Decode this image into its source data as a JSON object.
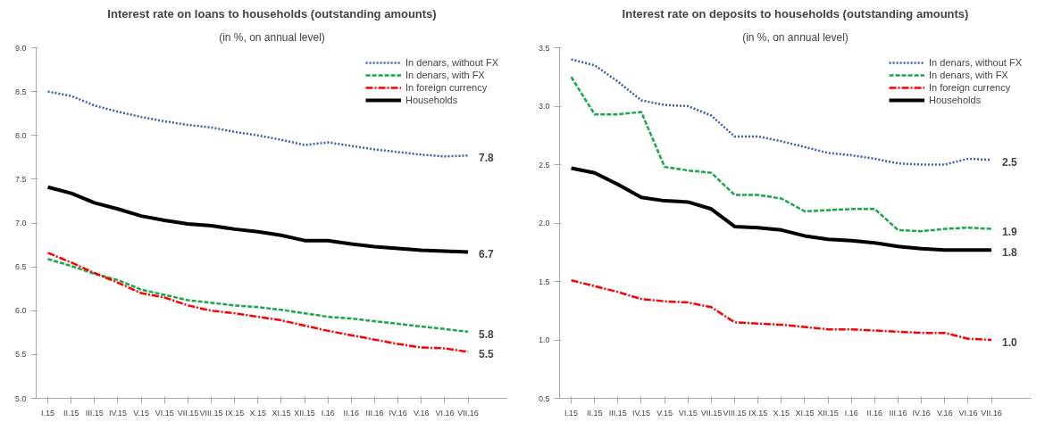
{
  "chart_data": [
    {
      "type": "line",
      "title": "Interest rate on loans to households (outstanding amounts)",
      "subtitle": "(in %, on annual level)",
      "categories": [
        "I.15",
        "II.15",
        "III.15",
        "IV.15",
        "V.15",
        "VI.15",
        "VII.15",
        "VIII.15",
        "IX.15",
        "X.15",
        "XI.15",
        "XII.15",
        "I.16",
        "II.16",
        "III.16",
        "IV.16",
        "V.16",
        "VI.16",
        "VII.16"
      ],
      "series": [
        {
          "name": "In denars, without FX",
          "color": "#3b5ea8",
          "line_style": "dotted",
          "values": [
            8.5,
            8.45,
            8.34,
            8.27,
            8.21,
            8.16,
            8.12,
            8.09,
            8.04,
            8.0,
            7.95,
            7.89,
            7.92,
            7.88,
            7.84,
            7.81,
            7.78,
            7.76,
            7.77
          ]
        },
        {
          "name": "In denars, with FX",
          "color": "#1aa64a",
          "line_style": "dashed",
          "values": [
            6.59,
            6.51,
            6.42,
            6.35,
            6.24,
            6.18,
            6.12,
            6.09,
            6.06,
            6.04,
            6.01,
            5.97,
            5.93,
            5.91,
            5.88,
            5.85,
            5.82,
            5.79,
            5.76
          ]
        },
        {
          "name": "In foreign currency",
          "color": "#ff0000",
          "line_style": "dashdot",
          "values": [
            6.66,
            6.55,
            6.43,
            6.32,
            6.2,
            6.15,
            6.06,
            6.0,
            5.97,
            5.93,
            5.89,
            5.83,
            5.77,
            5.72,
            5.67,
            5.62,
            5.58,
            5.57,
            5.53
          ]
        },
        {
          "name": "Households",
          "color": "#000000",
          "line_style": "solid",
          "values": [
            7.41,
            7.34,
            7.23,
            7.16,
            7.08,
            7.03,
            6.99,
            6.97,
            6.93,
            6.9,
            6.86,
            6.8,
            6.8,
            6.76,
            6.73,
            6.71,
            6.69,
            6.68,
            6.67
          ]
        }
      ],
      "ylim": [
        5.0,
        9.0
      ],
      "yticks": [
        {
          "value": 5,
          "label": "5.0"
        },
        5.5,
        {
          "value": 6,
          "label": "6.0"
        },
        6.5,
        {
          "value": 7,
          "label": "7.0"
        },
        7.5,
        {
          "value": 8,
          "label": "8.0"
        },
        8.5,
        {
          "value": 9,
          "label": "9.0"
        }
      ],
      "grid": false,
      "legend": "top right",
      "annotations": [
        {
          "text": "7.8",
          "x": "VII.16",
          "y": 7.77
        },
        {
          "text": "6.7",
          "x": "VII.16",
          "y": 6.67
        },
        {
          "text": "5.8",
          "x": "VII.16",
          "y": 5.76
        },
        {
          "text": "5.5",
          "x": "VII.16",
          "y": 5.53
        }
      ]
    },
    {
      "type": "line",
      "title": "Interest rate on deposits to households (outstanding amounts)",
      "subtitle": "(in %, on annual level)",
      "categories": [
        "I.15",
        "II.15",
        "III.15",
        "IV.15",
        "V.15",
        "VI.15",
        "VII.15",
        "VIII.15",
        "IX.15",
        "X.15",
        "XI.15",
        "XII.15",
        "I.16",
        "II.16",
        "III.16",
        "IV.16",
        "V.16",
        "VI.16",
        "VII.16"
      ],
      "series": [
        {
          "name": "In denars, without FX",
          "color": "#3b5ea8",
          "line_style": "dotted",
          "values": [
            3.4,
            3.35,
            3.21,
            3.05,
            3.01,
            3.0,
            2.92,
            2.74,
            2.74,
            2.7,
            2.65,
            2.6,
            2.58,
            2.55,
            2.51,
            2.5,
            2.5,
            2.55,
            2.54
          ]
        },
        {
          "name": "In denars, with FX",
          "color": "#1aa64a",
          "line_style": "dashed",
          "values": [
            3.25,
            2.93,
            2.93,
            2.95,
            2.48,
            2.45,
            2.43,
            2.24,
            2.24,
            2.21,
            2.1,
            2.11,
            2.12,
            2.12,
            1.94,
            1.93,
            1.95,
            1.96,
            1.95
          ]
        },
        {
          "name": "In foreign currency",
          "color": "#ff0000",
          "line_style": "dashdot",
          "values": [
            1.51,
            1.46,
            1.41,
            1.35,
            1.33,
            1.32,
            1.28,
            1.15,
            1.14,
            1.13,
            1.11,
            1.09,
            1.09,
            1.08,
            1.07,
            1.06,
            1.06,
            1.01,
            1.0
          ]
        },
        {
          "name": "Households",
          "color": "#000000",
          "line_style": "solid",
          "values": [
            2.47,
            2.43,
            2.33,
            2.22,
            2.19,
            2.18,
            2.12,
            1.97,
            1.96,
            1.94,
            1.89,
            1.86,
            1.85,
            1.83,
            1.8,
            1.78,
            1.77,
            1.77,
            1.77
          ]
        }
      ],
      "ylim": [
        0.5,
        3.5
      ],
      "yticks": [
        0.5,
        {
          "value": 1,
          "label": "1.0"
        },
        1.5,
        {
          "value": 2,
          "label": "2.0"
        },
        2.5,
        {
          "value": 3,
          "label": "3.0"
        },
        3.5
      ],
      "grid": false,
      "legend": "top right",
      "annotations": [
        {
          "text": "2.5",
          "x": "VII.16",
          "y": 2.54
        },
        {
          "text": "1.9",
          "x": "VII.16",
          "y": 1.95
        },
        {
          "text": "1.8",
          "x": "VII.16",
          "y": 1.77
        },
        {
          "text": "1.0",
          "x": "VII.16",
          "y": 1.0
        }
      ]
    }
  ]
}
